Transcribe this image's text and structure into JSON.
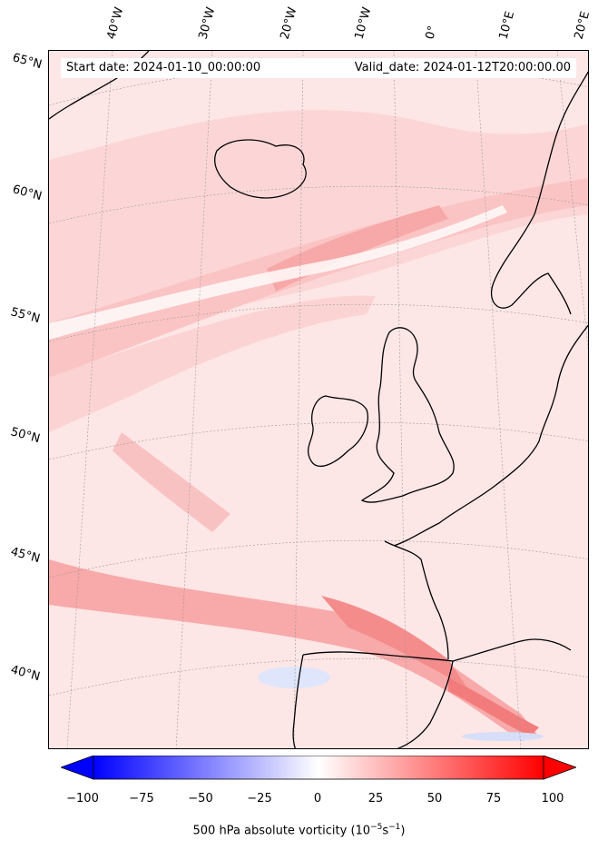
{
  "header": {
    "start_date": "Start date: 2024-01-10_00:00:00",
    "valid_date": "Valid_date: 2024-01-12T20:00:00.00"
  },
  "map": {
    "projection": "lambert-conformal",
    "extent_lon": [
      -45,
      22
    ],
    "extent_lat": [
      37,
      66
    ],
    "land_mask": false,
    "coastline_color": "#000000",
    "gridlines": true
  },
  "latitude_labels": [
    "65°N",
    "60°N",
    "55°N",
    "50°N",
    "45°N",
    "40°N"
  ],
  "longitude_labels": [
    "40°W",
    "30°W",
    "20°W",
    "10°W",
    "0°",
    "10°E",
    "20°E"
  ],
  "colorbar": {
    "ticks": [
      "−100",
      "−75",
      "−50",
      "−25",
      "0",
      "25",
      "50",
      "75",
      "100"
    ],
    "vmin": -100,
    "vmax": 100,
    "cmap": "bwr",
    "extend": "both",
    "label_main": "500 hPa absolute vorticity (10",
    "label_sup1": "−5",
    "label_mid": "s",
    "label_sup2": "−1",
    "label_end": ")"
  },
  "colors": {
    "blue_end": "#0000ff",
    "white_mid": "#ffffff",
    "red_end": "#ff0000"
  }
}
